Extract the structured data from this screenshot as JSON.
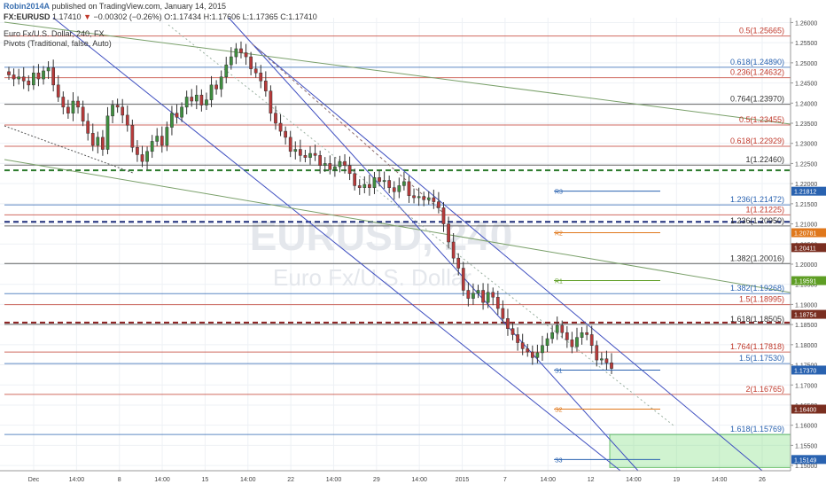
{
  "header": {
    "author": "Robin2014A",
    "published": "published on TradingView.com, January 14, 2015",
    "symbol": "FX:EURUSD",
    "last": "1.17410",
    "arrow": "▼",
    "change": "−0.00302 (−0.26%)",
    "ohlc": "O:1.17434 H:1.17606 L:1.17365 C:1.17410",
    "instrument": "Euro Fx/U.S. Dollar, 240, FX",
    "indicator": "Pivots (Traditional, false, Auto)"
  },
  "watermark": {
    "symbol": "EURUSD, 240",
    "name": "Euro Fx/U.S. Dollar"
  },
  "chart_data": {
    "type": "candlestick",
    "instrument": "Euro Fx/U.S. Dollar",
    "timeframe": "240",
    "ylim": [
      1.1487,
      1.2612
    ],
    "x_ticks": [
      "Dec",
      "14:00",
      "8",
      "14:00",
      "15",
      "14:00",
      "22",
      "14:00",
      "29",
      "14:00",
      "2015",
      "7",
      "14:00",
      "12",
      "14:00",
      "19",
      "14:00",
      "26"
    ],
    "y_ticks": [
      "1.26000",
      "1.25500",
      "1.25000",
      "1.24500",
      "1.24000",
      "1.23500",
      "1.23000",
      "1.22500",
      "1.22000",
      "1.21500",
      "1.21000",
      "1.20500",
      "1.20000",
      "1.19500",
      "1.19000",
      "1.18500",
      "1.18000",
      "1.17500",
      "1.17000",
      "1.16500",
      "1.16000",
      "1.15500",
      "1.15000"
    ],
    "price_badges": [
      {
        "value": "1.21812",
        "color": "#2962b0"
      },
      {
        "value": "1.20781",
        "color": "#e0781c"
      },
      {
        "value": "1.20411",
        "color": "#7a2e20"
      },
      {
        "value": "1.19591",
        "color": "#5e9e24"
      },
      {
        "value": "1.18754",
        "color": "#7a2e20"
      },
      {
        "value": "1.17370",
        "color": "#2962b0"
      },
      {
        "value": "1.16400",
        "color": "#7a2e20"
      },
      {
        "value": "1.15149",
        "color": "#2962b0"
      }
    ],
    "fib_labels": [
      {
        "text": "0.5(1.25665)",
        "value": 1.25665,
        "color": "#c0392b"
      },
      {
        "text": "0.618(1.24890)",
        "value": 1.2489,
        "color": "#2962b0"
      },
      {
        "text": "0.236(1.24632)",
        "value": 1.24632,
        "color": "#c0392b"
      },
      {
        "text": "0.764(1.23970)",
        "value": 1.2397,
        "color": "#333333"
      },
      {
        "text": "0.5(1.23455)",
        "value": 1.23455,
        "color": "#c0392b"
      },
      {
        "text": "0.618(1.22929)",
        "value": 1.22929,
        "color": "#c0392b"
      },
      {
        "text": "1(1.22460)",
        "value": 1.2246,
        "color": "#333333"
      },
      {
        "text": "1.236(1.21472)",
        "value": 1.21472,
        "color": "#2962b0"
      },
      {
        "text": "1(1.21225)",
        "value": 1.21225,
        "color": "#c0392b"
      },
      {
        "text": "1.236(1.20950)",
        "value": 1.2095,
        "color": "#333333"
      },
      {
        "text": "1.382(1.20016)",
        "value": 1.20016,
        "color": "#333333"
      },
      {
        "text": "1.382(1.19268)",
        "value": 1.19268,
        "color": "#2962b0"
      },
      {
        "text": "1.5(1.18995)",
        "value": 1.18995,
        "color": "#c0392b"
      },
      {
        "text": "1.618(1.18505)",
        "value": 1.18505,
        "color": "#333333"
      },
      {
        "text": "1.764(1.17818)",
        "value": 1.17818,
        "color": "#c0392b"
      },
      {
        "text": "1.5(1.17530)",
        "value": 1.1753,
        "color": "#2962b0"
      },
      {
        "text": "2(1.16765)",
        "value": 1.16765,
        "color": "#c0392b"
      },
      {
        "text": "1.618(1.15769)",
        "value": 1.15769,
        "color": "#2962b0"
      }
    ],
    "pivots": [
      {
        "label": "R3",
        "value": 1.21812,
        "color": "#2962b0"
      },
      {
        "label": "R2",
        "value": 1.20781,
        "color": "#e0781c"
      },
      {
        "label": "R1",
        "value": 1.19591,
        "color": "#5e9e24"
      },
      {
        "label": "S1",
        "value": 1.1737,
        "color": "#2962b0"
      },
      {
        "label": "S2",
        "value": 1.164,
        "color": "#e0781c"
      },
      {
        "label": "S3",
        "value": 1.15149,
        "color": "#2962b0"
      }
    ],
    "closes": [
      1.247,
      1.246,
      1.2465,
      1.2455,
      1.2445,
      1.2475,
      1.246,
      1.248,
      1.2488,
      1.2445,
      1.2415,
      1.239,
      1.2375,
      1.2405,
      1.239,
      1.2355,
      1.2325,
      1.2295,
      1.2315,
      1.2285,
      1.2368,
      1.2395,
      1.239,
      1.237,
      1.2345,
      1.229,
      1.2272,
      1.2255,
      1.228,
      1.2305,
      1.2318,
      1.2295,
      1.234,
      1.2375,
      1.2365,
      1.239,
      1.2415,
      1.2405,
      1.242,
      1.2395,
      1.2408,
      1.2445,
      1.2435,
      1.2465,
      1.2495,
      1.2515,
      1.2535,
      1.2525,
      1.2515,
      1.2485,
      1.2475,
      1.2455,
      1.243,
      1.2375,
      1.235,
      1.233,
      1.2315,
      1.228,
      1.2285,
      1.227,
      1.2265,
      1.2275,
      1.227,
      1.2245,
      1.225,
      1.2235,
      1.2242,
      1.2255,
      1.2245,
      1.2225,
      1.2195,
      1.219,
      1.2198,
      1.219,
      1.2215,
      1.2205,
      1.2208,
      1.219,
      1.218,
      1.2195,
      1.2205,
      1.217,
      1.2165,
      1.2168,
      1.216,
      1.2165,
      1.2155,
      1.214,
      1.21,
      1.2055,
      1.2015,
      1.199,
      1.1935,
      1.1915,
      1.1928,
      1.1935,
      1.1905,
      1.193,
      1.1918,
      1.189,
      1.1865,
      1.184,
      1.1825,
      1.1805,
      1.179,
      1.1782,
      1.1768,
      1.178,
      1.1798,
      1.1815,
      1.183,
      1.1848,
      1.183,
      1.1812,
      1.1795,
      1.1818,
      1.183,
      1.1825,
      1.1798,
      1.1762,
      1.1765,
      1.1755,
      1.1741
    ]
  }
}
